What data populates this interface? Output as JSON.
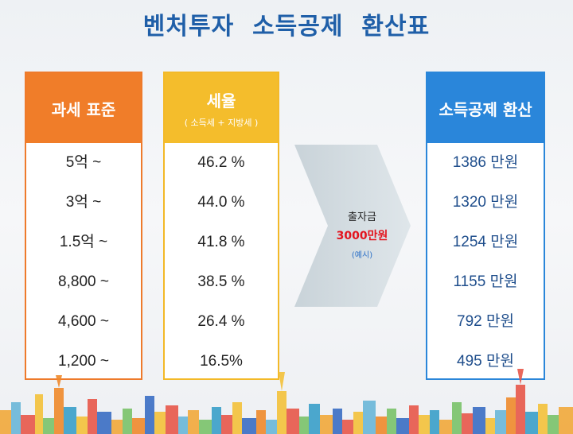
{
  "title": "벤처투자  소득공제  환산표",
  "columns": {
    "tax_base": {
      "header": "과세 표준",
      "rows": [
        "5억 ~",
        "3억 ~",
        "1.5억 ~",
        "8,800 ~",
        "4,600 ~",
        "1,200 ~"
      ]
    },
    "tax_rate": {
      "header": "세율",
      "subheader": "( 소득세 + 지방세 )",
      "rows": [
        "46.2 %",
        "44.0 %",
        "41.8 %",
        "38.5 %",
        "26.4 %",
        "16.5%"
      ]
    },
    "deduction": {
      "header": "소득공제 환산",
      "rows": [
        "1386 만원",
        "1320 만원",
        "1254 만원",
        "1155 만원",
        "792 만원",
        "495 만원"
      ]
    }
  },
  "arrow": {
    "label": "출자금",
    "amount": "3000만원",
    "note": "(예시)"
  },
  "colors": {
    "title": "#1f5fa8",
    "tax_base": "#f07d29",
    "tax_rate": "#f4bd2c",
    "deduction": "#2a86da",
    "amount": "#e3141e"
  }
}
